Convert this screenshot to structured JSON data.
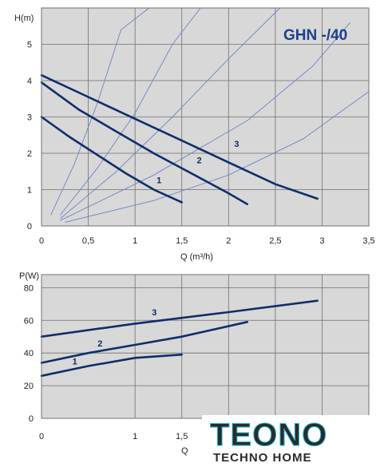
{
  "chart_title": "GHN -/40",
  "colors": {
    "pump_curve": "#0f2d6b",
    "system_curve": "#6b86c0",
    "plot_bg": "#d8d8d8",
    "grid": "#6f6f6f"
  },
  "chart_data": [
    {
      "type": "line",
      "title": "GHN -/40",
      "xlabel": "Q (m³/h)",
      "ylabel": "H(m)",
      "xlim": [
        0,
        3.5
      ],
      "ylim": [
        0,
        6
      ],
      "x_ticks": [
        "0",
        "0,5",
        "1",
        "1,5",
        "2",
        "2,5",
        "3",
        "3,5"
      ],
      "y_ticks": [
        "0",
        "1",
        "2",
        "3",
        "4",
        "5"
      ],
      "grid": true,
      "series": [
        {
          "name": "1",
          "x": [
            0,
            0.3,
            0.6,
            0.9,
            1.2,
            1.5
          ],
          "y": [
            3.0,
            2.45,
            1.95,
            1.45,
            1.0,
            0.65
          ]
        },
        {
          "name": "2",
          "x": [
            0,
            0.4,
            0.8,
            1.2,
            1.6,
            2.0,
            2.2
          ],
          "y": [
            3.95,
            3.2,
            2.6,
            2.0,
            1.45,
            0.9,
            0.6
          ]
        },
        {
          "name": "3",
          "x": [
            0,
            0.5,
            1.0,
            1.5,
            2.0,
            2.5,
            2.95
          ],
          "y": [
            4.15,
            3.55,
            2.95,
            2.35,
            1.75,
            1.15,
            0.75
          ]
        }
      ],
      "system_curves": [
        {
          "x": [
            0.1,
            0.35,
            0.6,
            0.85,
            1.15
          ],
          "y": [
            0.3,
            1.7,
            3.4,
            5.4,
            6.0
          ]
        },
        {
          "x": [
            0.2,
            0.6,
            1.0,
            1.4,
            1.7
          ],
          "y": [
            0.3,
            1.6,
            3.1,
            5.0,
            6.0
          ]
        },
        {
          "x": [
            0.2,
            0.8,
            1.4,
            2.0,
            2.55
          ],
          "y": [
            0.2,
            1.5,
            3.0,
            4.6,
            6.0
          ]
        },
        {
          "x": [
            0.2,
            1.2,
            2.2,
            2.9,
            3.3
          ],
          "y": [
            0.15,
            1.4,
            2.9,
            4.4,
            5.6
          ]
        },
        {
          "x": [
            0.25,
            1.2,
            2.0,
            2.8,
            3.5
          ],
          "y": [
            0.1,
            0.7,
            1.4,
            2.4,
            3.7
          ]
        }
      ]
    },
    {
      "type": "line",
      "title": "",
      "xlabel": "Q",
      "ylabel": "P(W)",
      "xlim": [
        0,
        3.5
      ],
      "ylim": [
        0,
        88
      ],
      "x_ticks": [
        "0",
        "1",
        "1,5"
      ],
      "y_ticks": [
        "0",
        "20",
        "40",
        "60",
        "80"
      ],
      "grid": true,
      "series": [
        {
          "name": "1",
          "x": [
            0,
            0.5,
            1.0,
            1.5
          ],
          "y": [
            26,
            32,
            37,
            39
          ]
        },
        {
          "name": "2",
          "x": [
            0,
            0.5,
            1.0,
            1.5,
            2.2
          ],
          "y": [
            34,
            40,
            45,
            50,
            59
          ]
        },
        {
          "name": "3",
          "x": [
            0,
            1.0,
            2.0,
            2.95
          ],
          "y": [
            50,
            58,
            65,
            72
          ]
        }
      ]
    }
  ],
  "watermark": {
    "brand": "TEONO",
    "tagline": "TECHNO HOME"
  }
}
